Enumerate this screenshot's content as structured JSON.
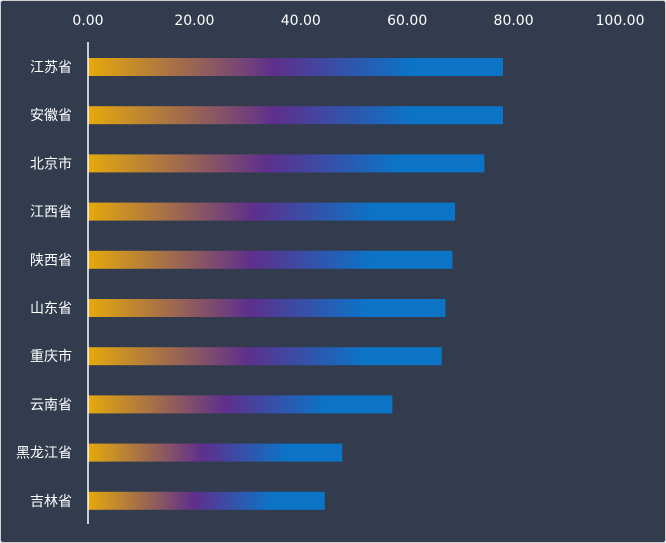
{
  "chart_data": {
    "type": "bar",
    "orientation": "horizontal",
    "categories": [
      "江苏省",
      "安徽省",
      "北京市",
      "江西省",
      "陕西省",
      "山东省",
      "重庆市",
      "云南省",
      "黑龙江省",
      "吉林省"
    ],
    "values": [
      78.0,
      78.0,
      74.5,
      69.0,
      68.5,
      67.2,
      66.5,
      57.2,
      47.8,
      44.5
    ],
    "xlim": [
      0,
      100
    ],
    "x_ticks": [
      "0.00",
      "20.00",
      "40.00",
      "60.00",
      "80.00",
      "100.00"
    ],
    "x_axis_position": "top",
    "grid": false,
    "title": "",
    "xlabel": "",
    "ylabel": "",
    "colors": {
      "background": "#323c4e",
      "bar_gradient_start": "#e6a90b",
      "bar_gradient_mid": "#5e2f8c",
      "bar_gradient_end": "#0b74c7",
      "text": "#ffffff",
      "axis_line": "#ffffff"
    }
  }
}
